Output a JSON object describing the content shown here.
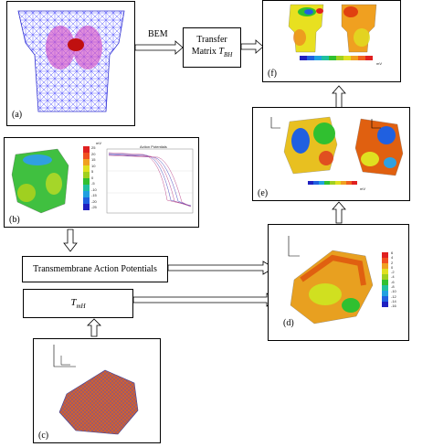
{
  "labels": {
    "a": "(a)",
    "b": "(b)",
    "c": "(c)",
    "d": "(d)",
    "e": "(e)",
    "f": "(f)"
  },
  "bem": "BEM",
  "transfer": {
    "line1": "Transfer",
    "line2_prefix": "Matrix ",
    "line2_sym": "T",
    "line2_sub": "BH"
  },
  "tap": "Transmembrane Action Potentials",
  "tmh": {
    "sym": "T",
    "sub": "mH"
  },
  "colorbar_b": [
    "25",
    "20",
    "15",
    "10",
    "5",
    "0",
    "-5",
    "-10",
    "-15",
    "-20",
    "-25"
  ],
  "colorbar_d": [
    "6",
    "4",
    "2",
    "0",
    "-2",
    "-4",
    "-6",
    "-8",
    "-10",
    "-12",
    "-14",
    "-16"
  ],
  "plot_b_title": "Action Potentials",
  "unit_mv": "mV",
  "colors": {
    "red": "#e2231a",
    "orange": "#f28a1c",
    "yellow": "#f0e020",
    "green": "#4fc64a",
    "cyan": "#28c0e0",
    "blue": "#2040d0"
  }
}
